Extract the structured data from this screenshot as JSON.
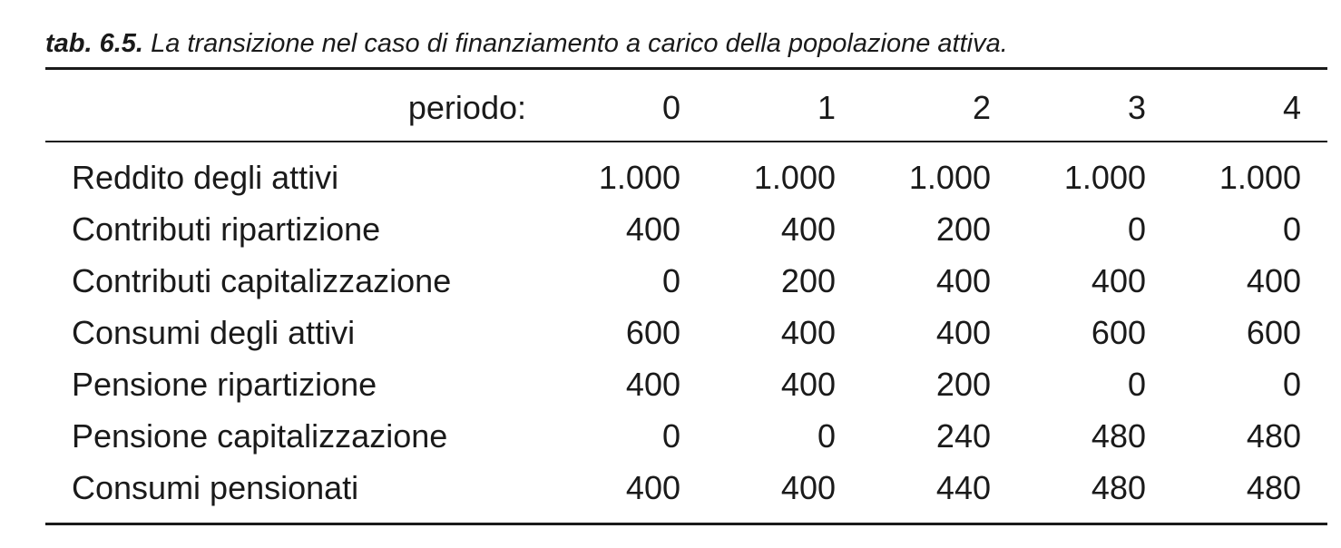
{
  "caption": {
    "number": "tab. 6.5.",
    "text": "La transizione nel caso di finanziamento a carico della popolazione attiva."
  },
  "header": {
    "label": "periodo:",
    "periods": [
      "0",
      "1",
      "2",
      "3",
      "4"
    ]
  },
  "rows": [
    {
      "label": "Reddito degli attivi",
      "values": [
        "1.000",
        "1.000",
        "1.000",
        "1.000",
        "1.000"
      ]
    },
    {
      "label": "Contributi ripartizione",
      "values": [
        "400",
        "400",
        "200",
        "0",
        "0"
      ]
    },
    {
      "label": "Contributi capitalizzazione",
      "values": [
        "0",
        "200",
        "400",
        "400",
        "400"
      ]
    },
    {
      "label": "Consumi degli attivi",
      "values": [
        "600",
        "400",
        "400",
        "600",
        "600"
      ]
    },
    {
      "label": "Pensione ripartizione",
      "values": [
        "400",
        "400",
        "200",
        "0",
        "0"
      ]
    },
    {
      "label": "Pensione capitalizzazione",
      "values": [
        "0",
        "0",
        "240",
        "480",
        "480"
      ]
    },
    {
      "label": "Consumi pensionati",
      "values": [
        "400",
        "400",
        "440",
        "480",
        "480"
      ]
    }
  ]
}
